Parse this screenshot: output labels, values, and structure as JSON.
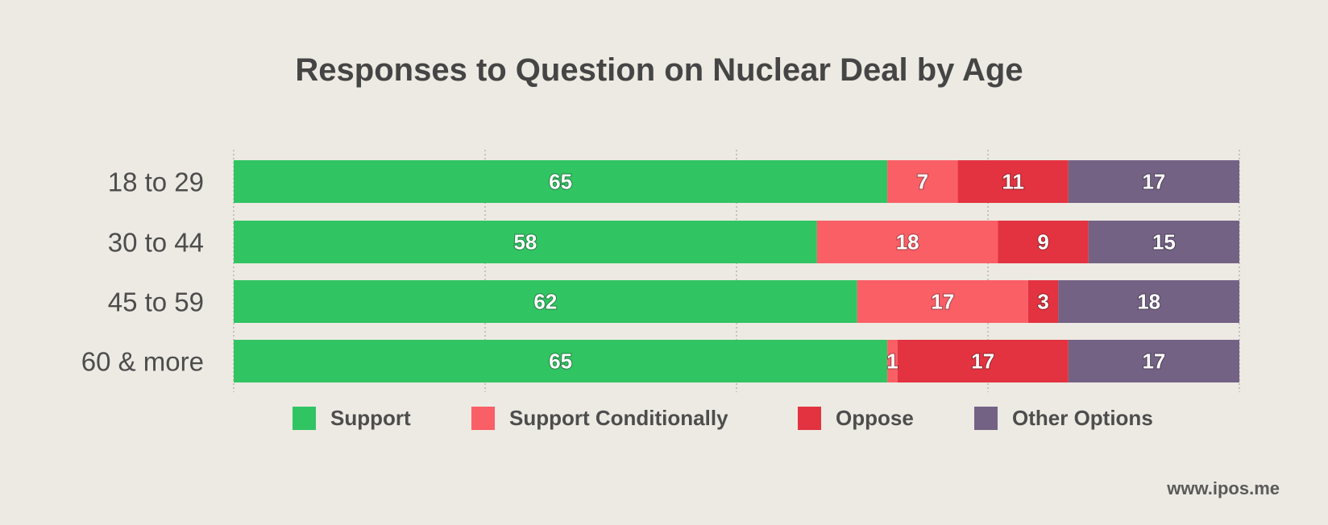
{
  "chart_data": {
    "type": "bar",
    "orientation": "horizontal",
    "stacked": true,
    "title": "Responses to Question on Nuclear Deal by Age",
    "categories": [
      "18 to 29",
      "30 to 44",
      "45 to 59",
      "60 & more"
    ],
    "series": [
      {
        "name": "Support",
        "color": "#31c463",
        "values": [
          65,
          58,
          62,
          65
        ]
      },
      {
        "name": "Support Conditionally",
        "color": "#fa5f66",
        "values": [
          7,
          18,
          17,
          1
        ]
      },
      {
        "name": "Oppose",
        "color": "#e33340",
        "values": [
          11,
          9,
          3,
          17
        ]
      },
      {
        "name": "Other Options",
        "color": "#746285",
        "values": [
          17,
          15,
          18,
          17
        ]
      }
    ],
    "xlim": [
      0,
      100
    ],
    "grid": true,
    "legend_position": "bottom"
  },
  "source": "www.ipos.me"
}
